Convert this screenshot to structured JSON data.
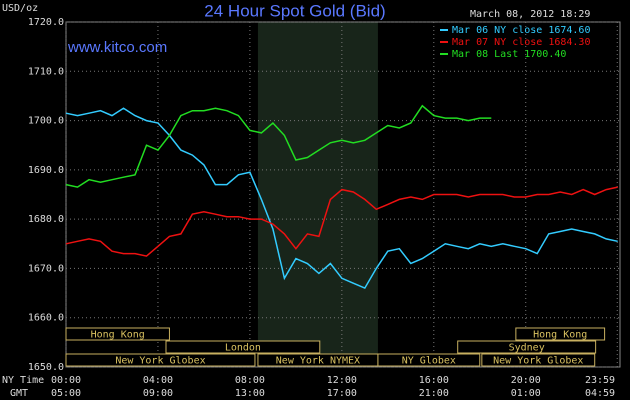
{
  "chart_data": {
    "type": "line",
    "title": "24 Hour Spot Gold (Bid)",
    "timestamp": "March 08, 2012 18:29",
    "watermark": "www.kitco.com",
    "ylabel": "USD/oz",
    "xlabel": "NY Time",
    "x2label": "GMT",
    "xlim": [
      0,
      24.1
    ],
    "ylim": [
      1650,
      1720
    ],
    "grid": true,
    "yticks": [
      {
        "value": 1650,
        "label": "1650.0"
      },
      {
        "value": 1660,
        "label": "1660.0"
      },
      {
        "value": 1670,
        "label": "1670.0"
      },
      {
        "value": 1680,
        "label": "1680.0"
      },
      {
        "value": 1690,
        "label": "1690.0"
      },
      {
        "value": 1700,
        "label": "1700.0"
      },
      {
        "value": 1710,
        "label": "1710.0"
      },
      {
        "value": 1720,
        "label": "1720.0"
      }
    ],
    "xticks": [
      {
        "value": 0,
        "label": "00:00"
      },
      {
        "value": 4,
        "label": "04:00"
      },
      {
        "value": 8,
        "label": "08:00"
      },
      {
        "value": 12,
        "label": "12:00"
      },
      {
        "value": 16,
        "label": "16:00"
      },
      {
        "value": 20,
        "label": "20:00"
      },
      {
        "value": 23.98,
        "label": "23:59"
      }
    ],
    "x2ticks": [
      {
        "value": 0,
        "label": "05:00"
      },
      {
        "value": 4,
        "label": "09:00"
      },
      {
        "value": 8,
        "label": "13:00"
      },
      {
        "value": 12,
        "label": "17:00"
      },
      {
        "value": 16,
        "label": "21:00"
      },
      {
        "value": 20,
        "label": "01:00"
      },
      {
        "value": 23.98,
        "label": "04:59"
      }
    ],
    "shaded": [
      8.35,
      13.57
    ],
    "x": [
      0,
      0.5,
      1,
      1.5,
      2,
      2.5,
      3,
      3.5,
      4,
      4.5,
      5,
      5.5,
      6,
      6.5,
      7,
      7.5,
      8,
      8.5,
      9,
      9.5,
      10,
      10.5,
      11,
      11.5,
      12,
      12.5,
      13,
      13.5,
      14,
      14.5,
      15,
      15.5,
      16,
      16.5,
      17,
      17.5,
      18,
      18.5,
      19,
      19.5,
      20,
      20.5,
      21,
      21.5,
      22,
      22.5,
      23,
      23.5,
      24
    ],
    "series": [
      {
        "name": "Mar 06 NY close 1674.60",
        "color": "#33ccff",
        "values": [
          1701.5,
          1701,
          1701.5,
          1702,
          1701,
          1702.5,
          1701,
          1700,
          1699.5,
          1697,
          1694,
          1693,
          1691,
          1687,
          1687,
          1689,
          1689.5,
          1684,
          1678,
          1668,
          1672,
          1671,
          1669,
          1671,
          1668,
          1667,
          1666,
          1670,
          1673.5,
          1674,
          1671,
          1672,
          1673.5,
          1675,
          1674.5,
          1674,
          1675,
          1674.5,
          1675,
          1674.5,
          1674,
          1673,
          1677,
          1677.5,
          1678,
          1677.5,
          1677,
          1676,
          1675.5
        ]
      },
      {
        "name": "Mar 07 NY close 1684.30",
        "color": "#ee1111",
        "values": [
          1675,
          1675.5,
          1676,
          1675.5,
          1673.5,
          1673,
          1673,
          1672.5,
          1674.5,
          1676.5,
          1677,
          1681,
          1681.5,
          1681,
          1680.5,
          1680.5,
          1680,
          1680,
          1679,
          1677,
          1674,
          1677,
          1676.5,
          1684,
          1686,
          1685.5,
          1684,
          1682,
          1683,
          1684,
          1684.5,
          1684,
          1685,
          1685,
          1685,
          1684.5,
          1685,
          1685,
          1685,
          1684.5,
          1684.5,
          1685,
          1685,
          1685.5,
          1685,
          1686,
          1685,
          1686,
          1686.5
        ]
      },
      {
        "name": "Mar 08 Last 1700.40",
        "color": "#22dd22",
        "values": [
          1687,
          1686.5,
          1688,
          1687.5,
          1688,
          1688.5,
          1689,
          1695,
          1694,
          1697,
          1701,
          1702,
          1702,
          1702.5,
          1702,
          1701,
          1698,
          1697.5,
          1699.5,
          1697,
          1692,
          1692.5,
          1694,
          1695.5,
          1696,
          1695.5,
          1696,
          1697.5,
          1699,
          1698.5,
          1699.5,
          1703,
          1701,
          1700.5,
          1700.5,
          1700,
          1700.5,
          1700.5,
          null,
          null,
          null,
          null,
          null,
          null,
          null,
          null,
          null,
          null,
          null
        ]
      }
    ],
    "sessions": [
      [
        {
          "name": "Hong Kong",
          "start": 0,
          "end": 4.5
        },
        {
          "name": "Hong Kong",
          "start": 19.57,
          "end": 23.43
        }
      ],
      [
        {
          "name": "London",
          "start": 4.35,
          "end": 11.04
        },
        {
          "name": "Sydney",
          "start": 17.04,
          "end": 23.04
        }
      ],
      [
        {
          "name": "New York Globex",
          "start": 0,
          "end": 8.22
        },
        {
          "name": "New York NYMEX",
          "start": 8.35,
          "end": 13.57
        },
        {
          "name": "NY Globex",
          "start": 13.57,
          "end": 18.0
        },
        {
          "name": "New York Globex",
          "start": 18.09,
          "end": 23.0
        }
      ]
    ]
  }
}
